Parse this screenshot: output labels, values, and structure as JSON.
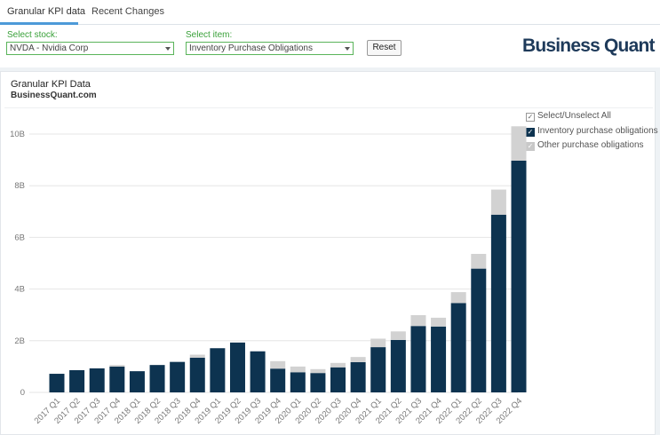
{
  "tabs": [
    {
      "label": "Granular KPI data"
    },
    {
      "label": "Recent Changes"
    }
  ],
  "controls": {
    "stock_label": "Select stock:",
    "stock_value": "NVDA - Nvidia Corp",
    "item_label": "Select item:",
    "item_value": "Inventory Purchase Obligations",
    "reset_label": "Reset"
  },
  "brand": "Business Quant",
  "card": {
    "title": "Granular KPI Data",
    "subtitle": "BusinessQuant.com"
  },
  "legend": {
    "select_all": "Select/Unselect All",
    "series1": "Inventory purchase obligations",
    "series2": "Other purchase obligations"
  },
  "colors": {
    "series1": "#0d3350",
    "series2": "#d2d2d2",
    "accent_green": "#3aa13a",
    "tab_underline": "#4d9ad8"
  },
  "chart_data": {
    "type": "bar",
    "stacked": true,
    "categories": [
      "2017 Q1",
      "2017 Q2",
      "2017 Q3",
      "2017 Q4",
      "2018 Q1",
      "2018 Q2",
      "2018 Q3",
      "2018 Q4",
      "2019 Q1",
      "2019 Q2",
      "2019 Q3",
      "2019 Q4",
      "2020 Q1",
      "2020 Q2",
      "2020 Q3",
      "2020 Q4",
      "2021 Q1",
      "2021 Q2",
      "2021 Q3",
      "2021 Q4",
      "2022 Q1",
      "2022 Q2",
      "2022 Q3",
      "2022 Q4"
    ],
    "series": [
      {
        "name": "Inventory purchase obligations",
        "values": [
          0.72,
          0.86,
          0.93,
          1.0,
          0.82,
          1.06,
          1.18,
          1.34,
          1.71,
          1.93,
          1.59,
          0.92,
          0.78,
          0.75,
          0.97,
          1.17,
          1.75,
          2.03,
          2.57,
          2.55,
          3.46,
          4.79,
          6.88,
          8.97
        ]
      },
      {
        "name": "Other purchase obligations",
        "values": [
          0,
          0,
          0,
          0.06,
          0,
          0,
          0,
          0.12,
          0,
          0,
          0,
          0.29,
          0.22,
          0.15,
          0.17,
          0.2,
          0.33,
          0.33,
          0.42,
          0.34,
          0.42,
          0.57,
          0.97,
          1.33
        ]
      }
    ],
    "yticks": [
      "0",
      "2B",
      "4B",
      "6B",
      "8B",
      "10B"
    ],
    "ylim": [
      0,
      10.5
    ],
    "grid": true,
    "legend_position": "top-right"
  }
}
